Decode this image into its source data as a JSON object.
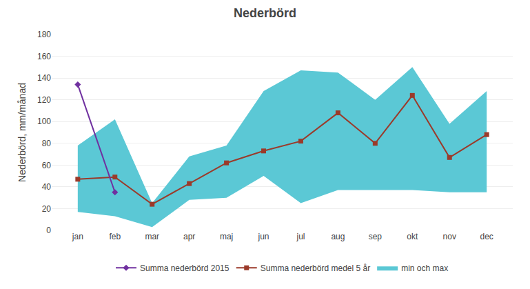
{
  "chart_data": {
    "type": "line",
    "title": "Nederbörd",
    "ylabel": "Nederbörd, mm/månad",
    "categories": [
      "jan",
      "feb",
      "mar",
      "apr",
      "maj",
      "jun",
      "jul",
      "aug",
      "sep",
      "okt",
      "nov",
      "dec"
    ],
    "series": [
      {
        "name": "min och max",
        "type": "range",
        "color": "#5bc8d5",
        "low": [
          17,
          13,
          3,
          28,
          30,
          50,
          25,
          37,
          37,
          37,
          35,
          35
        ],
        "high": [
          78,
          102,
          25,
          68,
          78,
          128,
          147,
          145,
          120,
          150,
          98,
          128
        ]
      },
      {
        "name": "Summa nederbörd medel 5 år",
        "type": "line",
        "color": "#9B3A2A",
        "marker": "square",
        "values": [
          47,
          49,
          24,
          43,
          62,
          73,
          82,
          108,
          80,
          124,
          67,
          88
        ]
      },
      {
        "name": "Summa nederbörd 2015",
        "type": "line",
        "color": "#7030A0",
        "marker": "diamond",
        "values": [
          134,
          35,
          null,
          null,
          null,
          null,
          null,
          null,
          null,
          null,
          null,
          null
        ]
      }
    ],
    "ylim": [
      0,
      180
    ],
    "yticks": [
      0,
      20,
      40,
      60,
      80,
      100,
      120,
      140,
      160,
      180
    ],
    "grid": true,
    "legend": "bottom"
  }
}
